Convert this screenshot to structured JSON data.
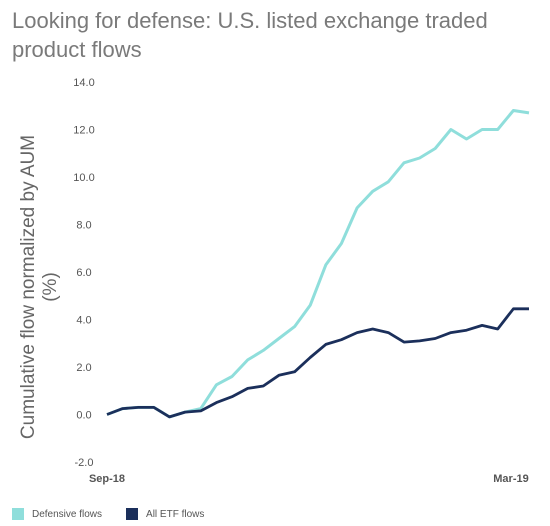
{
  "title": "Looking for defense: U.S. listed exchange traded product flows",
  "chart_data": {
    "type": "line",
    "title": "Looking for defense: U.S. listed exchange traded product flows",
    "ylabel": "Cumulative flow normalized by AUM (%)",
    "ylabel_line1": "Cumulative flow normalized by AUM",
    "ylabel_line2": "(%)",
    "xlabel": "",
    "ylim": [
      -2.0,
      14.0
    ],
    "yticks": [
      "-2.0",
      "0.0",
      "2.0",
      "4.0",
      "6.0",
      "8.0",
      "10.0",
      "12.0",
      "14.0"
    ],
    "x_tick_labels": [
      "Sep-18",
      "Mar-19"
    ],
    "grid": false,
    "legend_position": "bottom-left",
    "series": [
      {
        "name": "Defensive flows",
        "color": "#8fdedb",
        "values": [
          0.0,
          0.25,
          0.3,
          0.3,
          -0.1,
          0.1,
          0.25,
          1.25,
          1.6,
          2.3,
          2.7,
          3.2,
          3.7,
          4.6,
          6.3,
          7.2,
          8.7,
          9.4,
          9.8,
          10.6,
          10.8,
          11.2,
          12.0,
          11.6,
          12.0,
          12.0,
          12.8,
          12.7
        ]
      },
      {
        "name": "All ETF flows",
        "color": "#1b2f5b",
        "values": [
          0.0,
          0.25,
          0.3,
          0.3,
          -0.1,
          0.1,
          0.15,
          0.5,
          0.75,
          1.1,
          1.2,
          1.65,
          1.8,
          2.4,
          2.95,
          3.15,
          3.45,
          3.6,
          3.45,
          3.05,
          3.1,
          3.2,
          3.45,
          3.55,
          3.75,
          3.6,
          4.45,
          4.45
        ]
      }
    ]
  }
}
